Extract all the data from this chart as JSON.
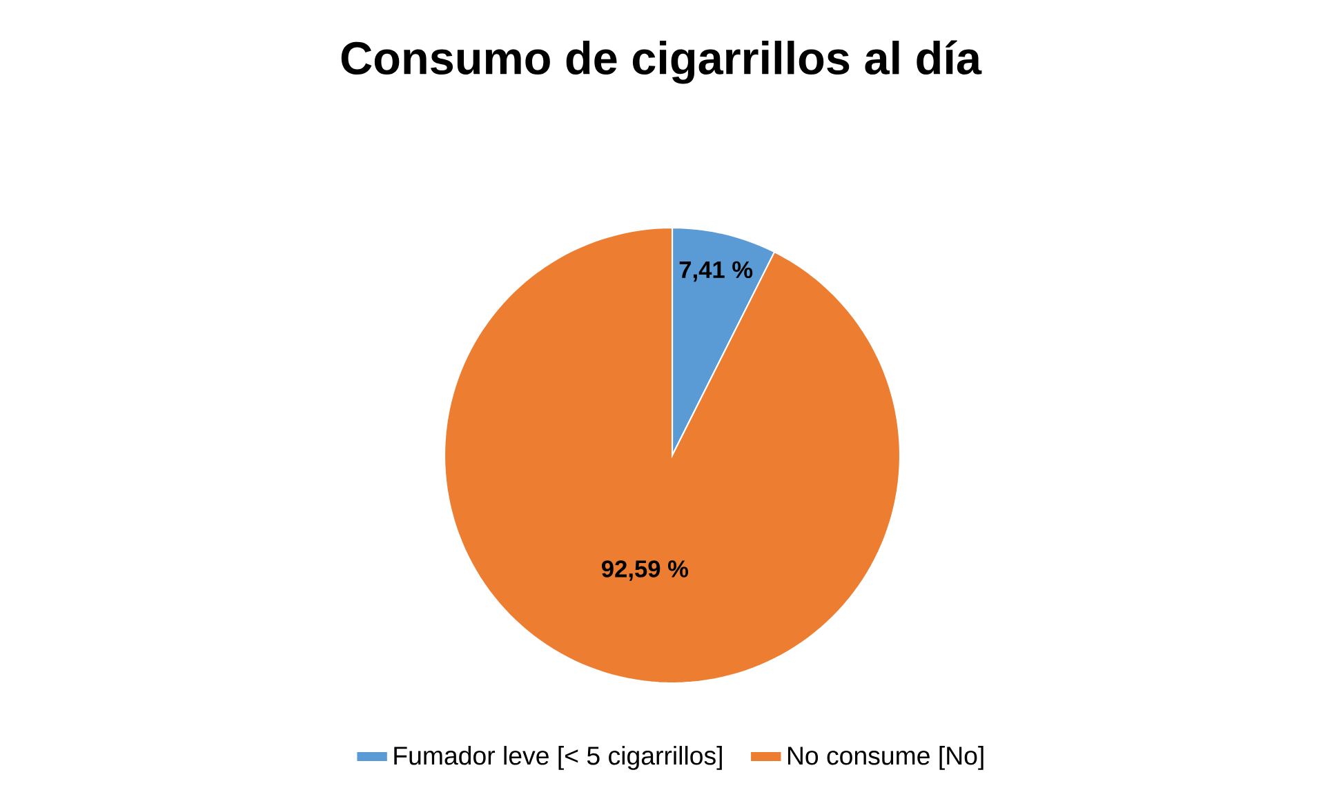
{
  "chart_data": {
    "type": "pie",
    "title": "Consumo de cigarrillos al día",
    "categories": [
      "Fumador leve [< 5 cigarrillos]",
      "No consume [No]"
    ],
    "values": [
      7.41,
      92.59
    ],
    "colors": [
      "#5b9bd5",
      "#ed7d31"
    ],
    "value_labels": [
      "7,41 %",
      "92,59 %"
    ],
    "legend": "bottom"
  }
}
